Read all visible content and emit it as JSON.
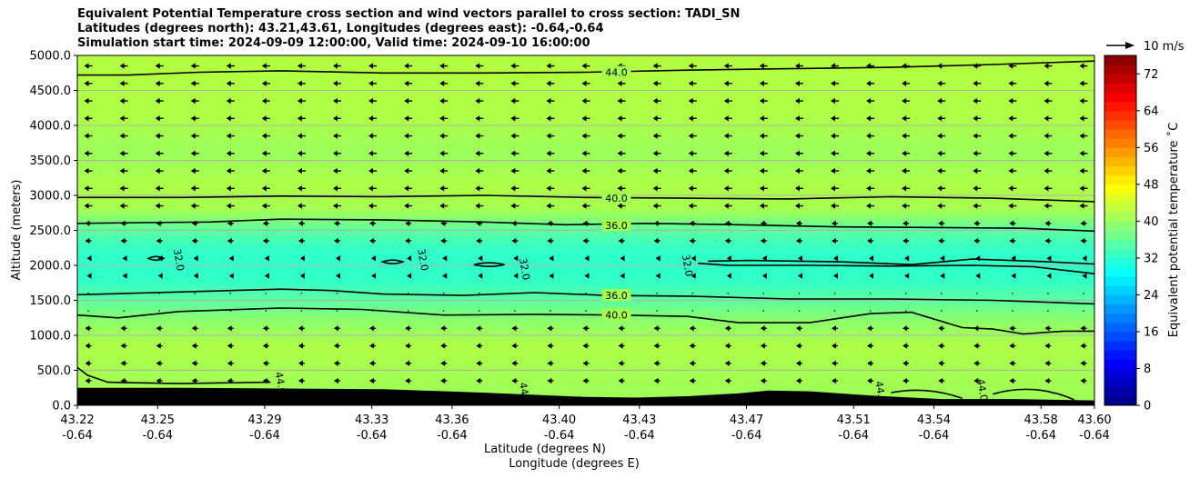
{
  "chart_data": {
    "type": "heatmap",
    "title_lines": [
      "Equivalent Potential Temperature cross section and wind vectors parallel to cross section: TADI_SN",
      "Latitudes (degrees north): 43.21,43.61, Longitudes (degrees east): -0.64,-0.64",
      "Simulation start time: 2024-09-09 12:00:00, Valid time: 2024-09-10 16:00:00"
    ],
    "ylabel": "Altitude (meters)",
    "xlabel_1": "Latitude (degrees N)",
    "xlabel_2": "Longitude (degrees E)",
    "ylim": [
      0,
      5000
    ],
    "xlim": [
      43.22,
      43.6
    ],
    "yticks": [
      "0.0",
      "500.0",
      "1000.0",
      "1500.0",
      "2000.0",
      "2500.0",
      "3000.0",
      "3500.0",
      "4000.0",
      "4500.0",
      "5000.0"
    ],
    "xticks": [
      {
        "lat": "43.22",
        "lon": "-0.64"
      },
      {
        "lat": "43.25",
        "lon": "-0.64"
      },
      {
        "lat": "43.29",
        "lon": "-0.64"
      },
      {
        "lat": "43.33",
        "lon": "-0.64"
      },
      {
        "lat": "43.36",
        "lon": "-0.64"
      },
      {
        "lat": "43.40",
        "lon": "-0.64"
      },
      {
        "lat": "43.43",
        "lon": "-0.64"
      },
      {
        "lat": "43.47",
        "lon": "-0.64"
      },
      {
        "lat": "43.51",
        "lon": "-0.64"
      },
      {
        "lat": "43.54",
        "lon": "-0.64"
      },
      {
        "lat": "43.58",
        "lon": "-0.64"
      },
      {
        "lat": "43.60",
        "lon": "-0.64"
      }
    ],
    "grid": "horizontal",
    "colorbar": {
      "label": "Equivalent potential temperature $^\\circ$C",
      "label_display": "Equivalent potential temperature ˚C",
      "min": 0,
      "max": 76,
      "ticks": [
        "0",
        "8",
        "16",
        "24",
        "32",
        "40",
        "48",
        "56",
        "64",
        "72"
      ],
      "colormap": "jet"
    },
    "quiver_key": "10 m/s",
    "contour_labels": [
      {
        "text": "44.0",
        "alt": 4760,
        "frac": 0.53
      },
      {
        "text": "40.0",
        "alt": 2960,
        "frac": 0.53
      },
      {
        "text": "36.0",
        "alt": 2570,
        "frac": 0.53
      },
      {
        "text": "36.0",
        "alt": 1570,
        "frac": 0.53
      },
      {
        "text": "40.0",
        "alt": 1290,
        "frac": 0.53
      },
      {
        "text": "32.0",
        "alt": 2080,
        "frac": 0.1
      },
      {
        "text": "32.0",
        "alt": 2080,
        "frac": 0.34
      },
      {
        "text": "32.0",
        "alt": 1950,
        "frac": 0.44
      },
      {
        "text": "32.0",
        "alt": 2000,
        "frac": 0.6
      },
      {
        "text": "44.0",
        "alt": 320,
        "frac": 0.2
      },
      {
        "text": "44.0",
        "alt": 170,
        "frac": 0.44
      },
      {
        "text": "44.0",
        "alt": 190,
        "frac": 0.79
      },
      {
        "text": "44.0",
        "alt": 220,
        "frac": 0.89
      }
    ],
    "contours": [
      {
        "level": "44.0",
        "points": [
          [
            0,
            4720
          ],
          [
            0.05,
            4720
          ],
          [
            0.12,
            4760
          ],
          [
            0.2,
            4780
          ],
          [
            0.3,
            4750
          ],
          [
            0.4,
            4750
          ],
          [
            0.5,
            4760
          ],
          [
            0.6,
            4790
          ],
          [
            0.7,
            4810
          ],
          [
            0.8,
            4830
          ],
          [
            0.9,
            4870
          ],
          [
            1,
            4920
          ]
        ]
      },
      {
        "level": "40.0",
        "points": [
          [
            0,
            2970
          ],
          [
            0.1,
            2970
          ],
          [
            0.2,
            2990
          ],
          [
            0.3,
            2980
          ],
          [
            0.4,
            3000
          ],
          [
            0.5,
            2970
          ],
          [
            0.6,
            2960
          ],
          [
            0.7,
            2950
          ],
          [
            0.8,
            2980
          ],
          [
            0.9,
            2960
          ],
          [
            1,
            2910
          ]
        ]
      },
      {
        "level": "36.0",
        "points": [
          [
            0,
            2600
          ],
          [
            0.06,
            2610
          ],
          [
            0.13,
            2620
          ],
          [
            0.2,
            2660
          ],
          [
            0.3,
            2650
          ],
          [
            0.4,
            2620
          ],
          [
            0.48,
            2580
          ],
          [
            0.56,
            2600
          ],
          [
            0.65,
            2580
          ],
          [
            0.75,
            2550
          ],
          [
            0.85,
            2540
          ],
          [
            0.93,
            2530
          ],
          [
            1,
            2490
          ]
        ]
      },
      {
        "level": "36.0",
        "points": [
          [
            0,
            1580
          ],
          [
            0.1,
            1620
          ],
          [
            0.2,
            1660
          ],
          [
            0.25,
            1640
          ],
          [
            0.3,
            1590
          ],
          [
            0.38,
            1570
          ],
          [
            0.45,
            1610
          ],
          [
            0.52,
            1570
          ],
          [
            0.6,
            1560
          ],
          [
            0.7,
            1520
          ],
          [
            0.8,
            1520
          ],
          [
            0.9,
            1500
          ],
          [
            1,
            1450
          ]
        ]
      },
      {
        "level": "40.0",
        "points": [
          [
            0,
            1290
          ],
          [
            0.04,
            1250
          ],
          [
            0.1,
            1340
          ],
          [
            0.2,
            1390
          ],
          [
            0.28,
            1370
          ],
          [
            0.36,
            1290
          ],
          [
            0.45,
            1300
          ],
          [
            0.53,
            1290
          ],
          [
            0.6,
            1270
          ],
          [
            0.65,
            1180
          ],
          [
            0.72,
            1180
          ],
          [
            0.78,
            1310
          ],
          [
            0.82,
            1330
          ],
          [
            0.87,
            1110
          ],
          [
            0.9,
            1090
          ],
          [
            0.93,
            1020
          ],
          [
            0.97,
            1060
          ],
          [
            1,
            1060
          ]
        ]
      },
      {
        "level": "32.0",
        "points": [
          [
            0.61,
            2030
          ],
          [
            0.64,
            2000
          ],
          [
            0.72,
            2000
          ],
          [
            0.8,
            1990
          ],
          [
            0.88,
            2000
          ],
          [
            0.94,
            1980
          ],
          [
            1,
            1880
          ]
        ]
      },
      {
        "level": "32.0",
        "points": [
          [
            0.62,
            2060
          ],
          [
            0.66,
            2070
          ],
          [
            0.75,
            2050
          ],
          [
            0.82,
            2010
          ],
          [
            0.88,
            2090
          ],
          [
            0.94,
            2060
          ],
          [
            1,
            2020
          ]
        ]
      },
      {
        "level": "44.0",
        "points": [
          [
            0,
            540
          ],
          [
            0.01,
            430
          ],
          [
            0.03,
            330
          ],
          [
            0.1,
            310
          ],
          [
            0.19,
            330
          ]
        ]
      }
    ],
    "terrain_alt": [
      [
        0,
        250
      ],
      [
        0.1,
        250
      ],
      [
        0.2,
        240
      ],
      [
        0.3,
        230
      ],
      [
        0.4,
        180
      ],
      [
        0.5,
        120
      ],
      [
        0.55,
        110
      ],
      [
        0.6,
        130
      ],
      [
        0.65,
        170
      ],
      [
        0.68,
        210
      ],
      [
        0.72,
        200
      ],
      [
        0.78,
        140
      ],
      [
        0.85,
        90
      ],
      [
        0.92,
        90
      ],
      [
        1,
        70
      ]
    ],
    "wind_shape": "leftward arrows, ~4-6 m/s, stronger near top"
  }
}
